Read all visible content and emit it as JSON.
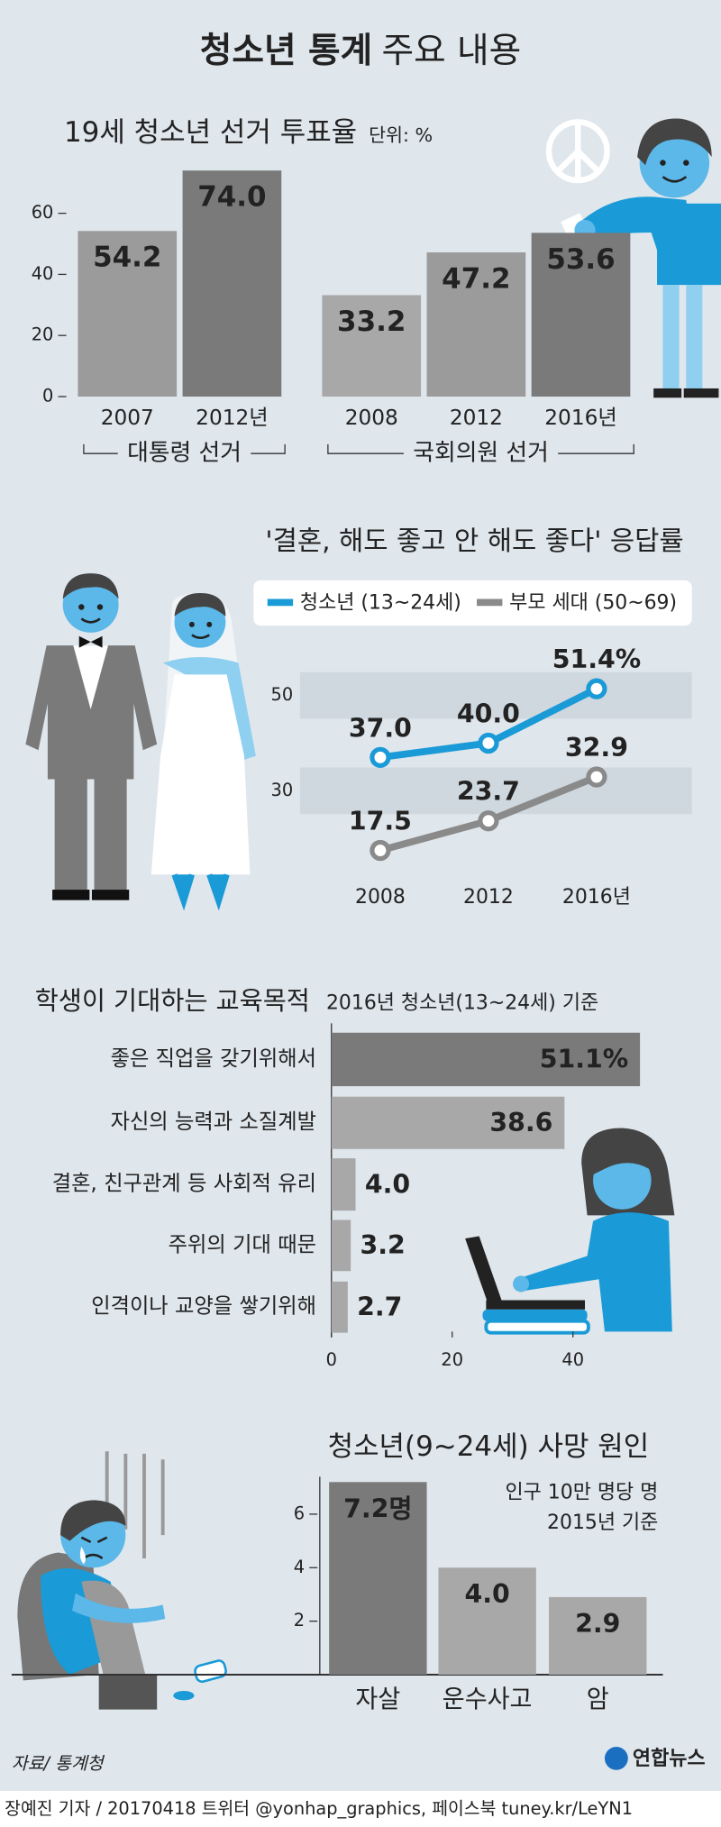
{
  "title": {
    "bold": "청소년 통계",
    "light": "주요 내용"
  },
  "chart_data": [
    {
      "type": "bar",
      "title": "19세 청소년 선거 투표율",
      "unit": "단위: %",
      "groups": [
        {
          "label": "대통령 선거",
          "categories": [
            "2007",
            "2012년"
          ],
          "values": [
            54.2,
            74.0
          ],
          "value_labels": [
            "54.2",
            "74.0"
          ],
          "colors": [
            "#9b9b9b",
            "#7a7a7a"
          ]
        },
        {
          "label": "국회의원 선거",
          "categories": [
            "2008",
            "2012",
            "2016년"
          ],
          "values": [
            33.2,
            47.2,
            53.6
          ],
          "value_labels": [
            "33.2",
            "47.2",
            "53.6"
          ],
          "colors": [
            "#a8a8a8",
            "#9b9b9b",
            "#7a7a7a"
          ]
        }
      ],
      "ylim": [
        0,
        75
      ],
      "yticks": [
        0,
        20,
        40,
        60
      ]
    },
    {
      "type": "line",
      "title": "'결혼, 해도 좋고 안 해도 좋다' 응답률",
      "categories": [
        "2008",
        "2012",
        "2016년"
      ],
      "series": [
        {
          "name": "청소년 (13~24세)",
          "color": "#1a9ad6",
          "values": [
            37.0,
            40.0,
            51.4
          ],
          "value_labels": [
            "37.0",
            "40.0",
            "51.4%"
          ]
        },
        {
          "name": "부모 세대 (50~69)",
          "color": "#8a8a8a",
          "values": [
            17.5,
            23.7,
            32.9
          ]
        }
      ],
      "ylim": [
        14,
        54
      ],
      "yticks": [
        30,
        50
      ]
    },
    {
      "type": "hbar",
      "title": "학생이 기대하는 교육목적",
      "subtitle": "2016년 청소년(13~24세) 기준",
      "categories": [
        "좋은 직업을 갖기위해서",
        "자신의 능력과 소질계발",
        "결혼, 친구관계 등 사회적 유리",
        "주위의 기대 때문",
        "인격이나 교양을 쌓기위해"
      ],
      "values": [
        51.1,
        38.6,
        4.0,
        3.2,
        2.7
      ],
      "value_labels": [
        "51.1%",
        "38.6",
        "4.0",
        "3.2",
        "2.7"
      ],
      "colors": [
        "#7a7a7a",
        "#a8a8a8",
        "#a8a8a8",
        "#a8a8a8",
        "#a8a8a8"
      ],
      "xlim": [
        0,
        52
      ],
      "xticks": [
        0,
        20,
        40
      ]
    },
    {
      "type": "bar",
      "title": "청소년(9~24세) 사망 원인",
      "notes": [
        "인구 10만 명당 명",
        "2015년 기준"
      ],
      "categories": [
        "자살",
        "운수사고",
        "암"
      ],
      "values": [
        7.2,
        4.0,
        2.9
      ],
      "value_labels": [
        "7.2명",
        "4.0",
        "2.9"
      ],
      "colors": [
        "#7a7a7a",
        "#a8a8a8",
        "#a8a8a8"
      ],
      "ylim": [
        0,
        7.4
      ],
      "yticks": [
        2,
        4,
        6
      ]
    }
  ],
  "footer": {
    "source": "자료/ 통계청",
    "logo": "연합뉴스",
    "credit": "장예진 기자 / 20170418 트위터 @yonhap_graphics, 페이스북 tuney.kr/LeYN1"
  }
}
